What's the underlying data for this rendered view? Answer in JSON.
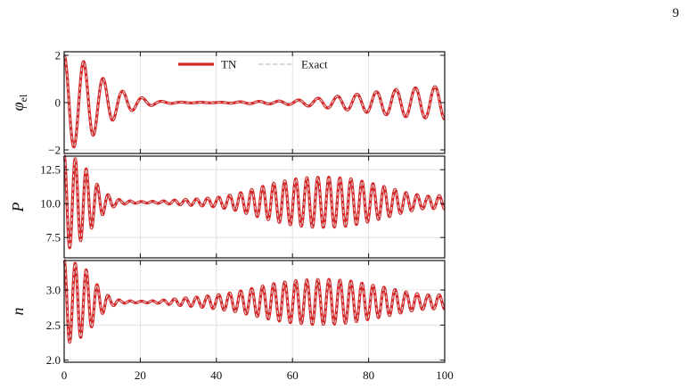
{
  "page_number": "9",
  "chart_data": {
    "type": "line",
    "xlim": [
      0,
      100
    ],
    "x_ticks": [
      0,
      20,
      40,
      60,
      80,
      100
    ],
    "x_tick_labels": [
      "0",
      "20",
      "40",
      "60",
      "80",
      "100"
    ],
    "grid": true,
    "legend": {
      "placement": "top-center",
      "entries": [
        {
          "label": "TN",
          "color": "#d62728",
          "style": "solid"
        },
        {
          "label": "Exact",
          "color": "#c8c8c8",
          "style": "dashed"
        }
      ]
    },
    "panels": [
      {
        "ylabel": "φ",
        "ylabel_sub": "el",
        "ylim": [
          -2.15,
          2.15
        ],
        "yticks": [
          -2,
          0,
          2
        ],
        "ytick_labels": [
          "−2",
          "0",
          "2"
        ],
        "series_model": {
          "baseline": 0.0,
          "frequency_per_unit": 0.195,
          "envelope": [
            [
              0,
              2.0
            ],
            [
              5,
              1.75
            ],
            [
              10,
              1.05
            ],
            [
              15,
              0.5
            ],
            [
              20,
              0.22
            ],
            [
              25,
              0.06
            ],
            [
              30,
              0.02
            ],
            [
              40,
              0.01
            ],
            [
              45,
              0.03
            ],
            [
              50,
              0.05
            ],
            [
              55,
              0.06
            ],
            [
              60,
              0.09
            ],
            [
              65,
              0.16
            ],
            [
              70,
              0.24
            ],
            [
              75,
              0.32
            ],
            [
              80,
              0.42
            ],
            [
              85,
              0.52
            ],
            [
              90,
              0.6
            ],
            [
              95,
              0.65
            ],
            [
              100,
              0.7
            ]
          ]
        }
      },
      {
        "ylabel": "P",
        "ylabel_sub": "",
        "ylim": [
          6.0,
          13.5
        ],
        "yticks": [
          7.5,
          10.0,
          12.5
        ],
        "ytick_labels": [
          "7.5",
          "10.0",
          "12.5"
        ],
        "series_model": {
          "baseline": 10.1,
          "frequency_per_unit": 0.345,
          "envelope": [
            [
              0,
              3.5
            ],
            [
              3,
              3.2
            ],
            [
              6,
              2.4
            ],
            [
              9,
              1.2
            ],
            [
              12,
              0.45
            ],
            [
              15,
              0.15
            ],
            [
              20,
              0.05
            ],
            [
              25,
              0.08
            ],
            [
              30,
              0.18
            ],
            [
              35,
              0.25
            ],
            [
              40,
              0.35
            ],
            [
              45,
              0.6
            ],
            [
              50,
              1.0
            ],
            [
              55,
              1.4
            ],
            [
              60,
              1.7
            ],
            [
              65,
              1.85
            ],
            [
              70,
              1.85
            ],
            [
              75,
              1.75
            ],
            [
              80,
              1.45
            ],
            [
              85,
              1.1
            ],
            [
              90,
              0.7
            ],
            [
              95,
              0.45
            ],
            [
              100,
              0.5
            ]
          ]
        }
      },
      {
        "ylabel": "n",
        "ylabel_sub": "",
        "ylim": [
          1.97,
          3.42
        ],
        "yticks": [
          2.0,
          2.5,
          3.0
        ],
        "ytick_labels": [
          "2.0",
          "2.5",
          "3.0"
        ],
        "series_model": {
          "baseline": 2.83,
          "frequency_per_unit": 0.345,
          "envelope": [
            [
              0,
              0.6
            ],
            [
              3,
              0.55
            ],
            [
              6,
              0.45
            ],
            [
              9,
              0.22
            ],
            [
              12,
              0.07
            ],
            [
              15,
              0.02
            ],
            [
              20,
              0.01
            ],
            [
              25,
              0.02
            ],
            [
              30,
              0.05
            ],
            [
              35,
              0.07
            ],
            [
              40,
              0.1
            ],
            [
              45,
              0.14
            ],
            [
              50,
              0.2
            ],
            [
              55,
              0.26
            ],
            [
              60,
              0.3
            ],
            [
              65,
              0.32
            ],
            [
              70,
              0.32
            ],
            [
              75,
              0.3
            ],
            [
              80,
              0.25
            ],
            [
              85,
              0.2
            ],
            [
              90,
              0.14
            ],
            [
              95,
              0.1
            ],
            [
              100,
              0.1
            ]
          ]
        }
      }
    ]
  }
}
